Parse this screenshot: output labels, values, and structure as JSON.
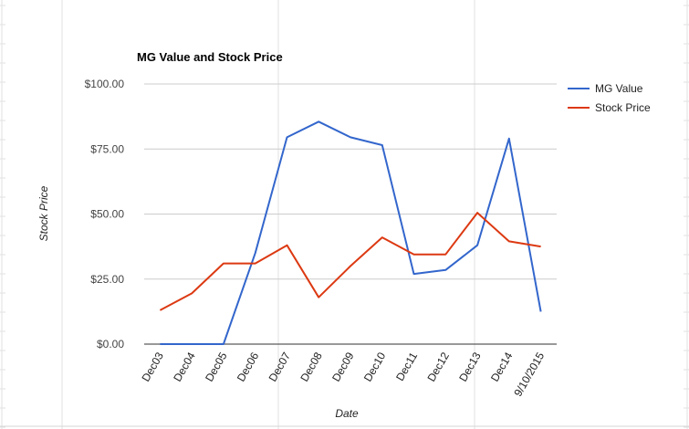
{
  "chart_data": {
    "type": "line",
    "title": "MG Value and Stock Price",
    "xlabel": "Date",
    "ylabel": "Stock Price",
    "categories": [
      "Dec03",
      "Dec04",
      "Dec05",
      "Dec06",
      "Dec07",
      "Dec08",
      "Dec09",
      "Dec10",
      "Dec11",
      "Dec12",
      "Dec13",
      "Dec14",
      "9/10/2015"
    ],
    "y_ticks": [
      "$0.00",
      "$25.00",
      "$50.00",
      "$75.00",
      "$100.00"
    ],
    "ylim": [
      0,
      100
    ],
    "grid": "horizontal",
    "legend_position": "right",
    "series": [
      {
        "name": "MG Value",
        "color": "#3366cc",
        "values": [
          0,
          0,
          0,
          35,
          79.5,
          85.5,
          79.5,
          76.5,
          27,
          28.5,
          38,
          79,
          12.5
        ]
      },
      {
        "name": "Stock Price",
        "color": "#dc3912",
        "values": [
          13,
          19.5,
          31,
          31,
          38,
          18,
          30,
          41,
          34.5,
          34.5,
          50.5,
          39.5,
          37.5
        ]
      }
    ]
  }
}
